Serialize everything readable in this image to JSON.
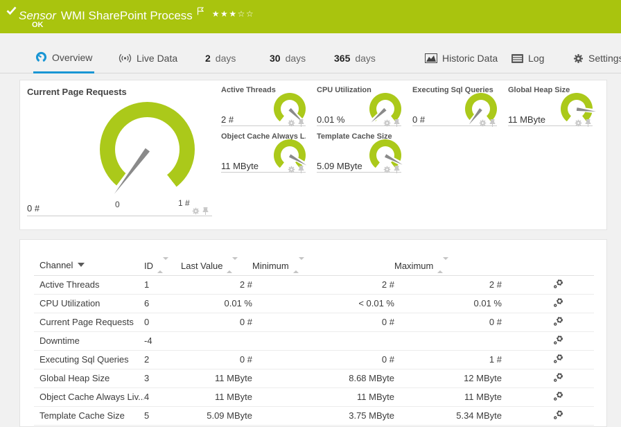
{
  "header": {
    "type_label": "Sensor",
    "title": "WMI SharePoint Process",
    "status": "OK",
    "rating_filled": 3,
    "rating_total": 5
  },
  "tabs": [
    {
      "id": "overview",
      "label": "Overview",
      "icon": "gauge-icon",
      "active": true
    },
    {
      "id": "live-data",
      "label": "Live Data",
      "icon": "live-icon",
      "active": false
    },
    {
      "id": "days-2",
      "number": "2",
      "label": "days",
      "active": false
    },
    {
      "id": "days-30",
      "number": "30",
      "label": "days",
      "active": false
    },
    {
      "id": "days-365",
      "number": "365",
      "label": "days",
      "active": false
    },
    {
      "id": "historic-data",
      "label": "Historic Data",
      "icon": "chart-icon",
      "active": false
    },
    {
      "id": "log",
      "label": "Log",
      "icon": "log-icon",
      "active": false
    },
    {
      "id": "settings",
      "label": "Settings",
      "icon": "gear-icon",
      "active": false
    }
  ],
  "gauges": {
    "primary": {
      "title": "Current Page Requests",
      "value": "0 #",
      "scale_min": "0",
      "scale_max": "1 #",
      "needle_deg": 127
    },
    "small": [
      {
        "title": "Active Threads",
        "value": "2 #",
        "needle_deg": 45
      },
      {
        "title": "CPU Utilization",
        "value": "0.01 %",
        "needle_deg": 137
      },
      {
        "title": "Executing Sql Queries",
        "value": "0 #",
        "needle_deg": 128
      },
      {
        "title": "Global Heap Size",
        "value": "11 MByte",
        "needle_deg": 7
      },
      {
        "title": "Object Cache Always L...",
        "value": "11 MByte",
        "needle_deg": 30
      },
      {
        "title": "Template Cache Size",
        "value": "5.09 MByte",
        "needle_deg": 28
      }
    ]
  },
  "table": {
    "columns": [
      {
        "label": "Channel",
        "sort": "desc"
      },
      {
        "label": "ID",
        "sort": "both"
      },
      {
        "label": "Last Value",
        "sort": "both"
      },
      {
        "label": "Minimum",
        "sort": "both"
      },
      {
        "label": "Maximum",
        "sort": "both"
      }
    ],
    "rows": [
      {
        "channel": "Active Threads",
        "id": "1",
        "last": "2 #",
        "min": "2 #",
        "max": "2 #"
      },
      {
        "channel": "CPU Utilization",
        "id": "6",
        "last": "0.01 %",
        "min": "< 0.01 %",
        "max": "0.01 %"
      },
      {
        "channel": "Current Page Requests",
        "id": "0",
        "last": "0 #",
        "min": "0 #",
        "max": "0 #"
      },
      {
        "channel": "Downtime",
        "id": "-4",
        "last": "",
        "min": "",
        "max": ""
      },
      {
        "channel": "Executing Sql Queries",
        "id": "2",
        "last": "0 #",
        "min": "0 #",
        "max": "1 #"
      },
      {
        "channel": "Global Heap Size",
        "id": "3",
        "last": "11 MByte",
        "min": "8.68 MByte",
        "max": "12 MByte"
      },
      {
        "channel": "Object Cache Always Liv...",
        "id": "4",
        "last": "11 MByte",
        "min": "11 MByte",
        "max": "11 MByte"
      },
      {
        "channel": "Template Cache Size",
        "id": "5",
        "last": "5.09 MByte",
        "min": "3.75 MByte",
        "max": "5.34 MByte"
      }
    ]
  },
  "colors": {
    "header_green": "#a9c40e",
    "gauge_green": "#abc91a",
    "accent_blue": "#1a96d4"
  }
}
